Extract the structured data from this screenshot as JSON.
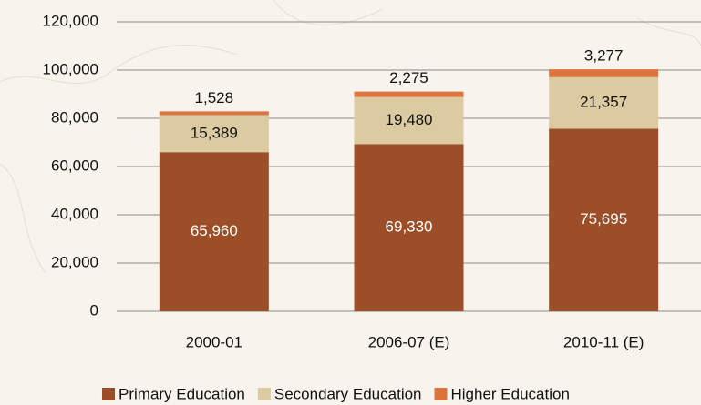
{
  "chart_data": {
    "type": "stacked_bar",
    "categories": [
      "2000-01",
      "2006-07 (E)",
      "2010-11 (E)"
    ],
    "series": [
      {
        "name": "Primary Education",
        "color": "#9b4e27",
        "values": [
          65960,
          69330,
          75695
        ],
        "value_labels": [
          "65,960",
          "69,330",
          "75,695"
        ]
      },
      {
        "name": "Secondary Education",
        "color": "#dccba1",
        "values": [
          15389,
          19480,
          21357
        ],
        "value_labels": [
          "15,389",
          "19,480",
          "21,357"
        ]
      },
      {
        "name": "Higher Education",
        "color": "#dc7440",
        "values": [
          1528,
          2275,
          3277
        ],
        "value_labels": [
          "1,528",
          "2,275",
          "3,277"
        ]
      }
    ],
    "ylim": [
      0,
      120000
    ],
    "yticks": [
      0,
      {
        "value": 20000,
        "label": "20,000"
      },
      {
        "value": 40000,
        "label": "40,000"
      },
      {
        "value": 60000,
        "label": "60,000"
      },
      {
        "value": 80000,
        "label": "80,000"
      },
      {
        "value": 100000,
        "label": "100,000"
      },
      {
        "value": 120000,
        "label": "120,000"
      }
    ],
    "grid": true,
    "legend": "bottom"
  }
}
